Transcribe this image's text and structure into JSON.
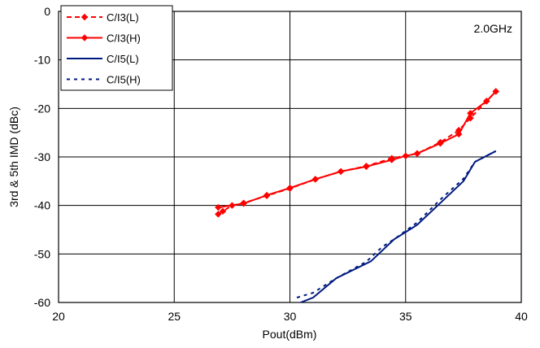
{
  "chart_data": {
    "type": "line",
    "title": "",
    "xlabel": "Pout(dBm)",
    "ylabel": "3rd & 5th IMD (dBc)",
    "xlim": [
      20,
      40
    ],
    "ylim": [
      -60,
      0
    ],
    "xticks": [
      20,
      25,
      30,
      35,
      40
    ],
    "yticks": [
      0,
      -10,
      -20,
      -30,
      -40,
      -50,
      -60
    ],
    "grid": true,
    "legend_position": "top-left",
    "annotation": "2.0GHz",
    "series": [
      {
        "name": "C/I3(L)",
        "color": "#ff0000",
        "dash": "dashed",
        "marker": "diamond",
        "points": [
          [
            26.9,
            -41.8
          ],
          [
            27.1,
            -41.2
          ],
          [
            27.5,
            -40.0
          ],
          [
            28.0,
            -39.5
          ],
          [
            29.0,
            -38.0
          ],
          [
            30.0,
            -36.5
          ],
          [
            31.1,
            -34.6
          ],
          [
            32.2,
            -33.0
          ],
          [
            33.3,
            -31.9
          ],
          [
            34.4,
            -30.3
          ],
          [
            35.5,
            -29.3
          ],
          [
            36.5,
            -27.0
          ],
          [
            37.3,
            -24.5
          ],
          [
            37.8,
            -22.0
          ],
          [
            38.5,
            -18.5
          ],
          [
            38.9,
            -16.5
          ]
        ]
      },
      {
        "name": "C/I3(H)",
        "color": "#ff0000",
        "dash": "solid",
        "marker": "diamond",
        "points": [
          [
            26.9,
            -40.4
          ],
          [
            28.0,
            -39.6
          ],
          [
            29.0,
            -37.9
          ],
          [
            30.0,
            -36.4
          ],
          [
            31.1,
            -34.6
          ],
          [
            32.2,
            -33.0
          ],
          [
            33.3,
            -32.0
          ],
          [
            34.4,
            -30.6
          ],
          [
            35.0,
            -29.8
          ],
          [
            35.5,
            -29.3
          ],
          [
            36.5,
            -27.2
          ],
          [
            37.3,
            -25.3
          ],
          [
            37.8,
            -21.0
          ],
          [
            38.5,
            -18.5
          ],
          [
            38.9,
            -16.5
          ]
        ]
      },
      {
        "name": "C/I5(L)",
        "color": "#001a80",
        "dash": "solid",
        "marker": "none",
        "points": [
          [
            30.2,
            -60.5
          ],
          [
            31.0,
            -59.0
          ],
          [
            32.0,
            -55.0
          ],
          [
            33.5,
            -51.5
          ],
          [
            34.5,
            -47.0
          ],
          [
            35.5,
            -44.0
          ],
          [
            36.5,
            -39.5
          ],
          [
            37.5,
            -35.0
          ],
          [
            38.0,
            -31.0
          ],
          [
            38.9,
            -28.8
          ]
        ]
      },
      {
        "name": "C/I5(H)",
        "color": "#001a80",
        "dash": "dotted",
        "marker": "none",
        "points": [
          [
            30.3,
            -59.0
          ],
          [
            31.0,
            -58.0
          ],
          [
            32.0,
            -55.0
          ],
          [
            33.3,
            -51.6
          ],
          [
            34.0,
            -48.5
          ],
          [
            34.5,
            -47.0
          ],
          [
            35.5,
            -43.5
          ],
          [
            36.5,
            -38.8
          ],
          [
            37.5,
            -34.5
          ],
          [
            38.0,
            -31.0
          ],
          [
            38.9,
            -28.8
          ]
        ]
      }
    ]
  }
}
